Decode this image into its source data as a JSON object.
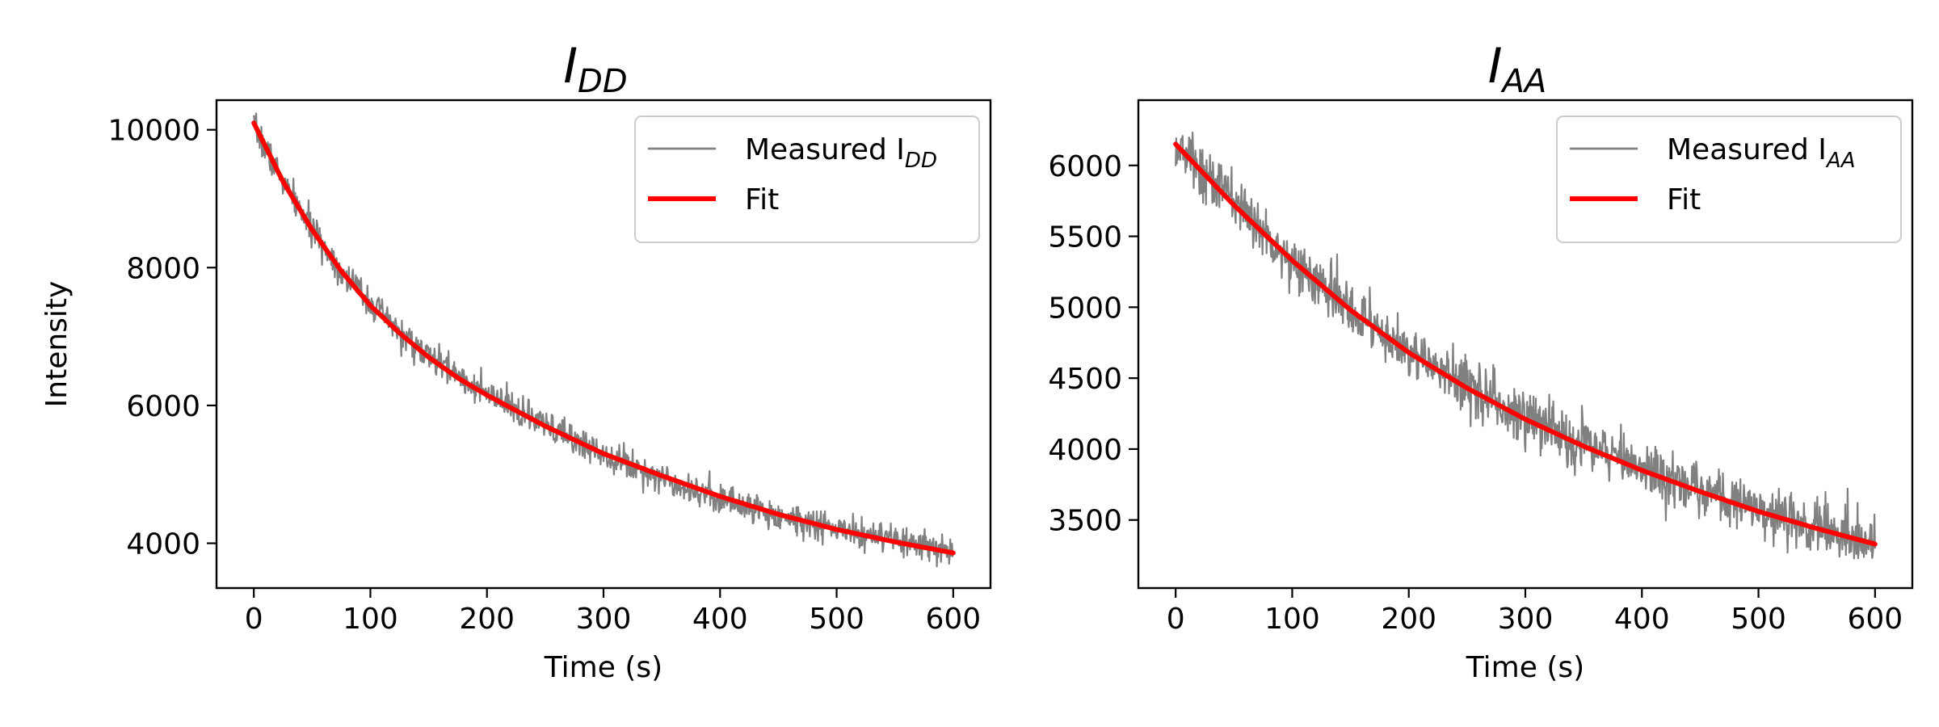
{
  "chart_data": [
    {
      "type": "line",
      "title": {
        "main": "I",
        "sub": "DD"
      },
      "xlabel": "Time (s)",
      "ylabel": "Intensity",
      "xlim": [
        -32,
        632
      ],
      "ylim": [
        3350,
        10430
      ],
      "xticks": [
        0,
        100,
        200,
        300,
        400,
        500,
        600
      ],
      "yticks": [
        4000,
        6000,
        8000,
        10000
      ],
      "grid": false,
      "legend_position": "top-right",
      "series": [
        {
          "name": {
            "main": "Measured I",
            "sub": "DD"
          },
          "color": "#808080",
          "style": "noisy-measurement",
          "x": [
            0,
            25,
            50,
            75,
            100,
            125,
            150,
            175,
            200,
            250,
            300,
            350,
            400,
            450,
            500,
            550,
            600
          ],
          "y": [
            10050,
            9250,
            8550,
            7950,
            7500,
            7050,
            6700,
            6450,
            6150,
            5700,
            5300,
            4950,
            4650,
            4400,
            4200,
            4030,
            3870
          ]
        },
        {
          "name": "Fit",
          "color": "#ff0000",
          "x": [
            0,
            25,
            50,
            75,
            100,
            125,
            150,
            175,
            200,
            250,
            300,
            350,
            400,
            450,
            500,
            550,
            600
          ],
          "y": [
            10100,
            9250,
            8550,
            7950,
            7450,
            7050,
            6700,
            6400,
            6150,
            5700,
            5300,
            4980,
            4680,
            4420,
            4200,
            4020,
            3860
          ]
        }
      ]
    },
    {
      "type": "line",
      "title": {
        "main": "I",
        "sub": "AA"
      },
      "xlabel": "Time (s)",
      "ylabel": "",
      "xlim": [
        -32,
        632
      ],
      "ylim": [
        3020,
        6460
      ],
      "xticks": [
        0,
        100,
        200,
        300,
        400,
        500,
        600
      ],
      "yticks": [
        3500,
        4000,
        4500,
        5000,
        5500,
        6000
      ],
      "grid": false,
      "legend_position": "top-right",
      "series": [
        {
          "name": {
            "main": "Measured I",
            "sub": "AA"
          },
          "color": "#808080",
          "style": "noisy-measurement",
          "x": [
            0,
            50,
            100,
            150,
            200,
            250,
            300,
            350,
            400,
            450,
            500,
            550,
            600
          ],
          "y": [
            6150,
            5750,
            5320,
            4980,
            4680,
            4450,
            4230,
            4040,
            3870,
            3720,
            3580,
            3460,
            3340
          ]
        },
        {
          "name": "Fit",
          "color": "#ff0000",
          "x": [
            0,
            50,
            100,
            150,
            200,
            250,
            300,
            350,
            400,
            450,
            500,
            550,
            600
          ],
          "y": [
            6150,
            5720,
            5330,
            4980,
            4680,
            4430,
            4210,
            4020,
            3850,
            3700,
            3560,
            3440,
            3330
          ]
        }
      ]
    }
  ]
}
